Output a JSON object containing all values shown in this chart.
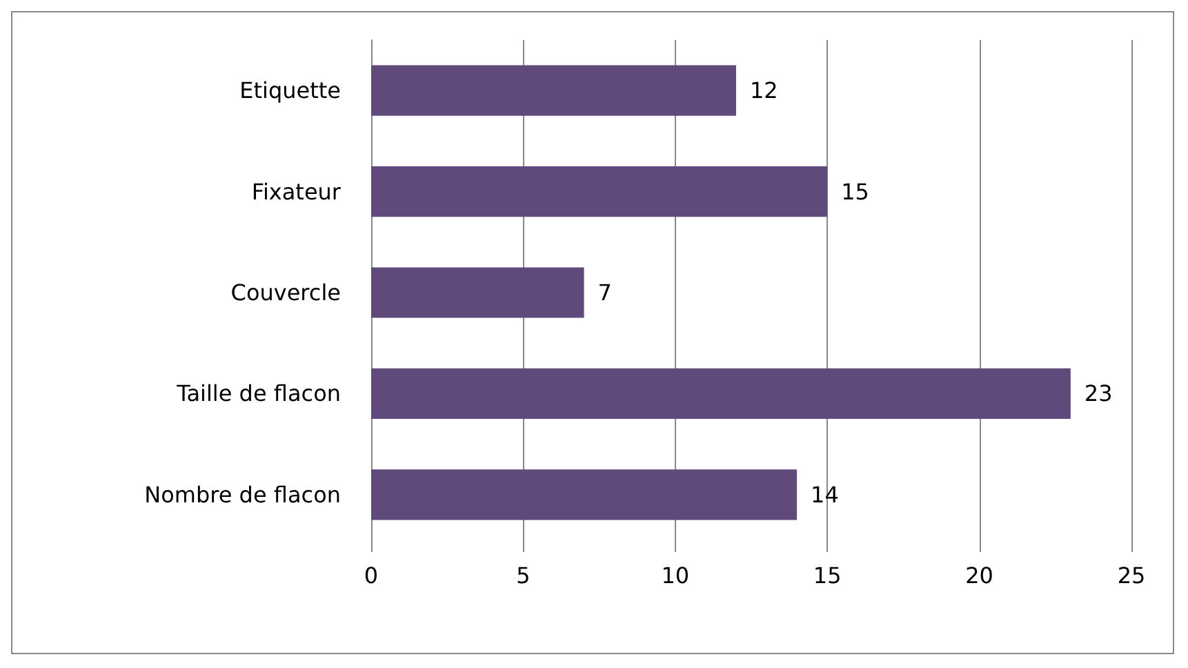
{
  "chart_data": {
    "type": "bar",
    "orientation": "horizontal",
    "categories": [
      "Etiquette",
      "Fixateur",
      "Couvercle",
      "Taille de flacon",
      "Nombre de flacon"
    ],
    "values": [
      12,
      15,
      7,
      23,
      14
    ],
    "color": "#604a7b",
    "xlim": [
      0,
      25
    ],
    "xticks": [
      0,
      5,
      10,
      15,
      20,
      25
    ],
    "grid": "x",
    "data_labels": true
  }
}
